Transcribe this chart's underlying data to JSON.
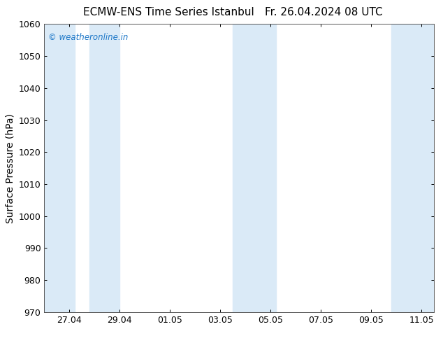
{
  "title_left": "ECMW-ENS Time Series Istanbul",
  "title_right": "Fr. 26.04.2024 08 UTC",
  "ylabel": "Surface Pressure (hPa)",
  "ylim": [
    970,
    1060
  ],
  "yticks": [
    970,
    980,
    990,
    1000,
    1010,
    1020,
    1030,
    1040,
    1050,
    1060
  ],
  "x_tick_labels": [
    "27.04",
    "29.04",
    "01.05",
    "03.05",
    "05.05",
    "07.05",
    "09.05",
    "11.05"
  ],
  "shade_bands": [
    {
      "x_start": 0.0,
      "x_end": 1.2
    },
    {
      "x_start": 1.8,
      "x_end": 3.0
    },
    {
      "x_start": 7.5,
      "x_end": 9.2
    },
    {
      "x_start": 13.8,
      "x_end": 15.5
    }
  ],
  "shade_color": "#daeaf7",
  "bg_color": "#ffffff",
  "copyright_text": "© weatheronline.in",
  "copyright_color": "#1e78c8",
  "title_fontsize": 11,
  "axis_label_fontsize": 10,
  "tick_fontsize": 9,
  "x_min": 0,
  "x_max": 15.5
}
